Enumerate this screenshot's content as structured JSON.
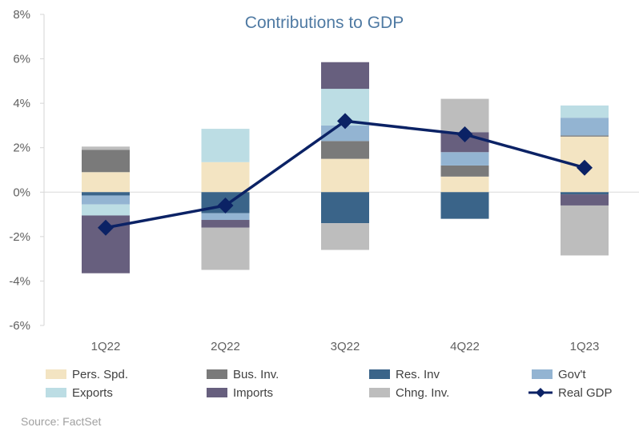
{
  "colors": {
    "pers_spd": "#f3e4c2",
    "bus_inv": "#7a7a7a",
    "res_inv": "#3a6489",
    "govt": "#93b4d2",
    "exports": "#bcdde4",
    "imports": "#675f7e",
    "chng_inv": "#bdbdbd",
    "real_gdp": "#0b2265",
    "title": "#4f7aa3",
    "axis_text": "#5f5f5f"
  },
  "source": "Source: FactSet",
  "chart_data": {
    "type": "bar",
    "title": "Contributions to GDP",
    "stacked": true,
    "categories": [
      "1Q22",
      "2Q22",
      "3Q22",
      "4Q22",
      "1Q23"
    ],
    "ylim": [
      -6,
      8
    ],
    "yticks": [
      -6,
      -4,
      -2,
      0,
      2,
      4,
      6,
      8
    ],
    "ytick_labels": [
      "-6%",
      "-4%",
      "-2%",
      "0%",
      "2%",
      "4%",
      "6%",
      "8%"
    ],
    "grid": false,
    "legend_position": "bottom",
    "series": [
      {
        "name": "Pers. Spd.",
        "key": "pers_spd",
        "values": [
          0.9,
          1.35,
          1.5,
          0.7,
          2.5
        ]
      },
      {
        "name": "Bus. Inv.",
        "key": "bus_inv",
        "values": [
          1.0,
          0.0,
          0.8,
          0.5,
          0.05
        ]
      },
      {
        "name": "Res. Inv",
        "key": "res_inv",
        "values": [
          -0.15,
          -0.95,
          -1.4,
          -1.2,
          -0.1
        ]
      },
      {
        "name": "Gov't",
        "key": "govt",
        "values": [
          -0.4,
          -0.3,
          0.7,
          0.6,
          0.8
        ]
      },
      {
        "name": "Exports",
        "key": "exports",
        "values": [
          -0.5,
          1.5,
          1.65,
          0.0,
          0.55
        ]
      },
      {
        "name": "Imports",
        "key": "imports",
        "values": [
          -2.6,
          -0.35,
          1.2,
          0.9,
          -0.5
        ]
      },
      {
        "name": "Chng. Inv.",
        "key": "chng_inv",
        "values": [
          0.15,
          -1.9,
          -1.2,
          1.5,
          -2.25
        ]
      }
    ],
    "line": {
      "name": "Real GDP",
      "key": "real_gdp",
      "values": [
        -1.6,
        -0.6,
        3.2,
        2.6,
        1.1
      ]
    },
    "legend_order": [
      "pers_spd",
      "bus_inv",
      "res_inv",
      "govt",
      "exports",
      "imports",
      "chng_inv",
      "real_gdp"
    ]
  }
}
